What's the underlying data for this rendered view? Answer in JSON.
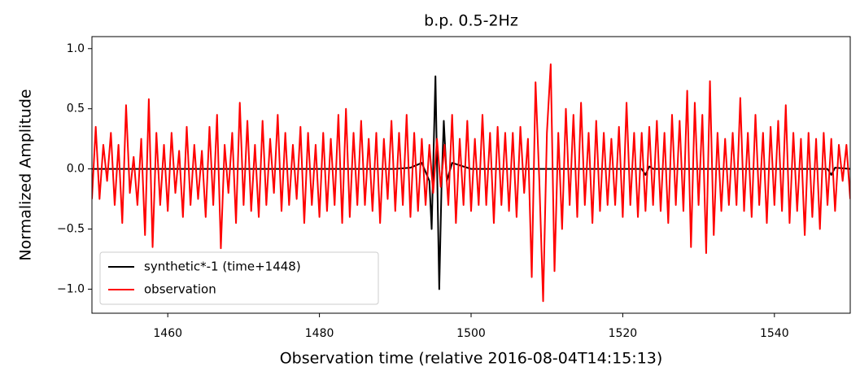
{
  "chart_data": {
    "type": "line",
    "title": "b.p. 0.5-2Hz",
    "xlabel": "Observation time (relative 2016-08-04T14:15:13)",
    "ylabel": "Normalized Amplitude",
    "xlim": [
      1450,
      1550
    ],
    "ylim": [
      -1.2,
      1.1
    ],
    "xticks": [
      1460,
      1480,
      1500,
      1520,
      1540
    ],
    "yticks": [
      {
        "value": -1.0,
        "label": "−1.0"
      },
      {
        "value": -0.5,
        "label": "−0.5"
      },
      {
        "value": 0.0,
        "label": "0.0"
      },
      {
        "value": 0.5,
        "label": "0.5"
      },
      {
        "value": 1.0,
        "label": "1.0"
      }
    ],
    "legend": "lower left",
    "series": [
      {
        "name": "synthetic*-1 (time+1448)",
        "color": "#000000",
        "x": [
          1450,
          1490,
          1492,
          1493.5,
          1494.5,
          1494.8,
          1495.3,
          1495.8,
          1496.1,
          1496.4,
          1496.8,
          1497.5,
          1498.5,
          1500,
          1522.5,
          1523,
          1523.5,
          1524,
          1547,
          1547.5,
          1548,
          1550
        ],
        "values": [
          0,
          0,
          0.01,
          0.05,
          -0.1,
          -0.5,
          0.77,
          -1.0,
          -0.15,
          0.4,
          -0.1,
          0.05,
          0.03,
          0,
          0,
          -0.05,
          0.02,
          0,
          0,
          -0.05,
          0.01,
          0
        ]
      },
      {
        "name": "observation",
        "color": "#ff0000",
        "x": [
          1450,
          1450.5,
          1451,
          1451.5,
          1452,
          1452.5,
          1453,
          1453.5,
          1454,
          1454.5,
          1455,
          1455.5,
          1456,
          1456.5,
          1457,
          1457.5,
          1458,
          1458.5,
          1459,
          1459.5,
          1460,
          1460.5,
          1461,
          1461.5,
          1462,
          1462.5,
          1463,
          1463.5,
          1464,
          1464.5,
          1465,
          1465.5,
          1466,
          1466.5,
          1467,
          1467.5,
          1468,
          1468.5,
          1469,
          1469.5,
          1470,
          1470.5,
          1471,
          1471.5,
          1472,
          1472.5,
          1473,
          1473.5,
          1474,
          1474.5,
          1475,
          1475.5,
          1476,
          1476.5,
          1477,
          1477.5,
          1478,
          1478.5,
          1479,
          1479.5,
          1480,
          1480.5,
          1481,
          1481.5,
          1482,
          1482.5,
          1483,
          1483.5,
          1484,
          1484.5,
          1485,
          1485.5,
          1486,
          1486.5,
          1487,
          1487.5,
          1488,
          1488.5,
          1489,
          1489.5,
          1490,
          1490.5,
          1491,
          1491.5,
          1492,
          1492.5,
          1493,
          1493.5,
          1494,
          1494.5,
          1495,
          1495.5,
          1496,
          1496.5,
          1497,
          1497.5,
          1498,
          1498.5,
          1499,
          1499.5,
          1500,
          1500.5,
          1501,
          1501.5,
          1502,
          1502.5,
          1503,
          1503.5,
          1504,
          1504.5,
          1505,
          1505.5,
          1506,
          1506.5,
          1507,
          1507.5,
          1508,
          1508.5,
          1509,
          1509.5,
          1510,
          1510.5,
          1511,
          1511.5,
          1512,
          1512.5,
          1513,
          1513.5,
          1514,
          1514.5,
          1515,
          1515.5,
          1516,
          1516.5,
          1517,
          1517.5,
          1518,
          1518.5,
          1519,
          1519.5,
          1520,
          1520.5,
          1521,
          1521.5,
          1522,
          1522.5,
          1523,
          1523.5,
          1524,
          1524.5,
          1525,
          1525.5,
          1526,
          1526.5,
          1527,
          1527.5,
          1528,
          1528.5,
          1529,
          1529.5,
          1530,
          1530.5,
          1531,
          1531.5,
          1532,
          1532.5,
          1533,
          1533.5,
          1534,
          1534.5,
          1535,
          1535.5,
          1536,
          1536.5,
          1537,
          1537.5,
          1538,
          1538.5,
          1539,
          1539.5,
          1540,
          1540.5,
          1541,
          1541.5,
          1542,
          1542.5,
          1543,
          1543.5,
          1544,
          1544.5,
          1545,
          1545.5,
          1546,
          1546.5,
          1547,
          1547.5,
          1548,
          1548.5,
          1549,
          1549.5,
          1550
        ],
        "values": [
          -0.25,
          0.35,
          -0.25,
          0.2,
          -0.1,
          0.3,
          -0.3,
          0.2,
          -0.45,
          0.53,
          -0.2,
          0.1,
          -0.3,
          0.25,
          -0.55,
          0.58,
          -0.65,
          0.3,
          -0.3,
          0.2,
          -0.35,
          0.3,
          -0.2,
          0.15,
          -0.4,
          0.35,
          -0.3,
          0.2,
          -0.25,
          0.15,
          -0.4,
          0.35,
          -0.3,
          0.45,
          -0.66,
          0.2,
          -0.2,
          0.3,
          -0.45,
          0.55,
          -0.3,
          0.4,
          -0.35,
          0.2,
          -0.4,
          0.4,
          -0.3,
          0.25,
          -0.2,
          0.45,
          -0.35,
          0.3,
          -0.3,
          0.2,
          -0.25,
          0.35,
          -0.45,
          0.3,
          -0.3,
          0.2,
          -0.4,
          0.3,
          -0.35,
          0.25,
          -0.3,
          0.45,
          -0.45,
          0.5,
          -0.4,
          0.3,
          -0.3,
          0.4,
          -0.3,
          0.25,
          -0.35,
          0.3,
          -0.45,
          0.25,
          -0.25,
          0.4,
          -0.35,
          0.3,
          -0.3,
          0.45,
          -0.4,
          0.3,
          -0.35,
          0.25,
          -0.3,
          0.2,
          -0.2,
          0.25,
          -0.15,
          0.2,
          -0.3,
          0.45,
          -0.45,
          0.25,
          -0.3,
          0.4,
          -0.35,
          0.25,
          -0.3,
          0.45,
          -0.3,
          0.3,
          -0.45,
          0.35,
          -0.3,
          0.3,
          -0.35,
          0.3,
          -0.4,
          0.35,
          -0.2,
          0.25,
          -0.9,
          0.72,
          -0.1,
          -1.1,
          0.3,
          0.87,
          -0.85,
          0.3,
          -0.5,
          0.5,
          -0.3,
          0.45,
          -0.4,
          0.55,
          -0.3,
          0.3,
          -0.45,
          0.4,
          -0.35,
          0.3,
          -0.3,
          0.25,
          -0.3,
          0.35,
          -0.4,
          0.55,
          -0.3,
          0.3,
          -0.4,
          0.3,
          -0.35,
          0.35,
          -0.3,
          0.4,
          -0.35,
          0.3,
          -0.45,
          0.45,
          -0.3,
          0.4,
          -0.35,
          0.65,
          -0.65,
          0.55,
          -0.3,
          0.45,
          -0.7,
          0.73,
          -0.55,
          0.3,
          -0.35,
          0.25,
          -0.3,
          0.3,
          -0.3,
          0.59,
          -0.35,
          0.3,
          -0.4,
          0.45,
          -0.3,
          0.3,
          -0.45,
          0.35,
          -0.3,
          0.4,
          -0.35,
          0.53,
          -0.45,
          0.3,
          -0.35,
          0.25,
          -0.55,
          0.3,
          -0.4,
          0.25,
          -0.5,
          0.3,
          -0.3,
          0.25,
          -0.35,
          0.2,
          -0.1,
          0.2,
          -0.25
        ]
      }
    ]
  }
}
